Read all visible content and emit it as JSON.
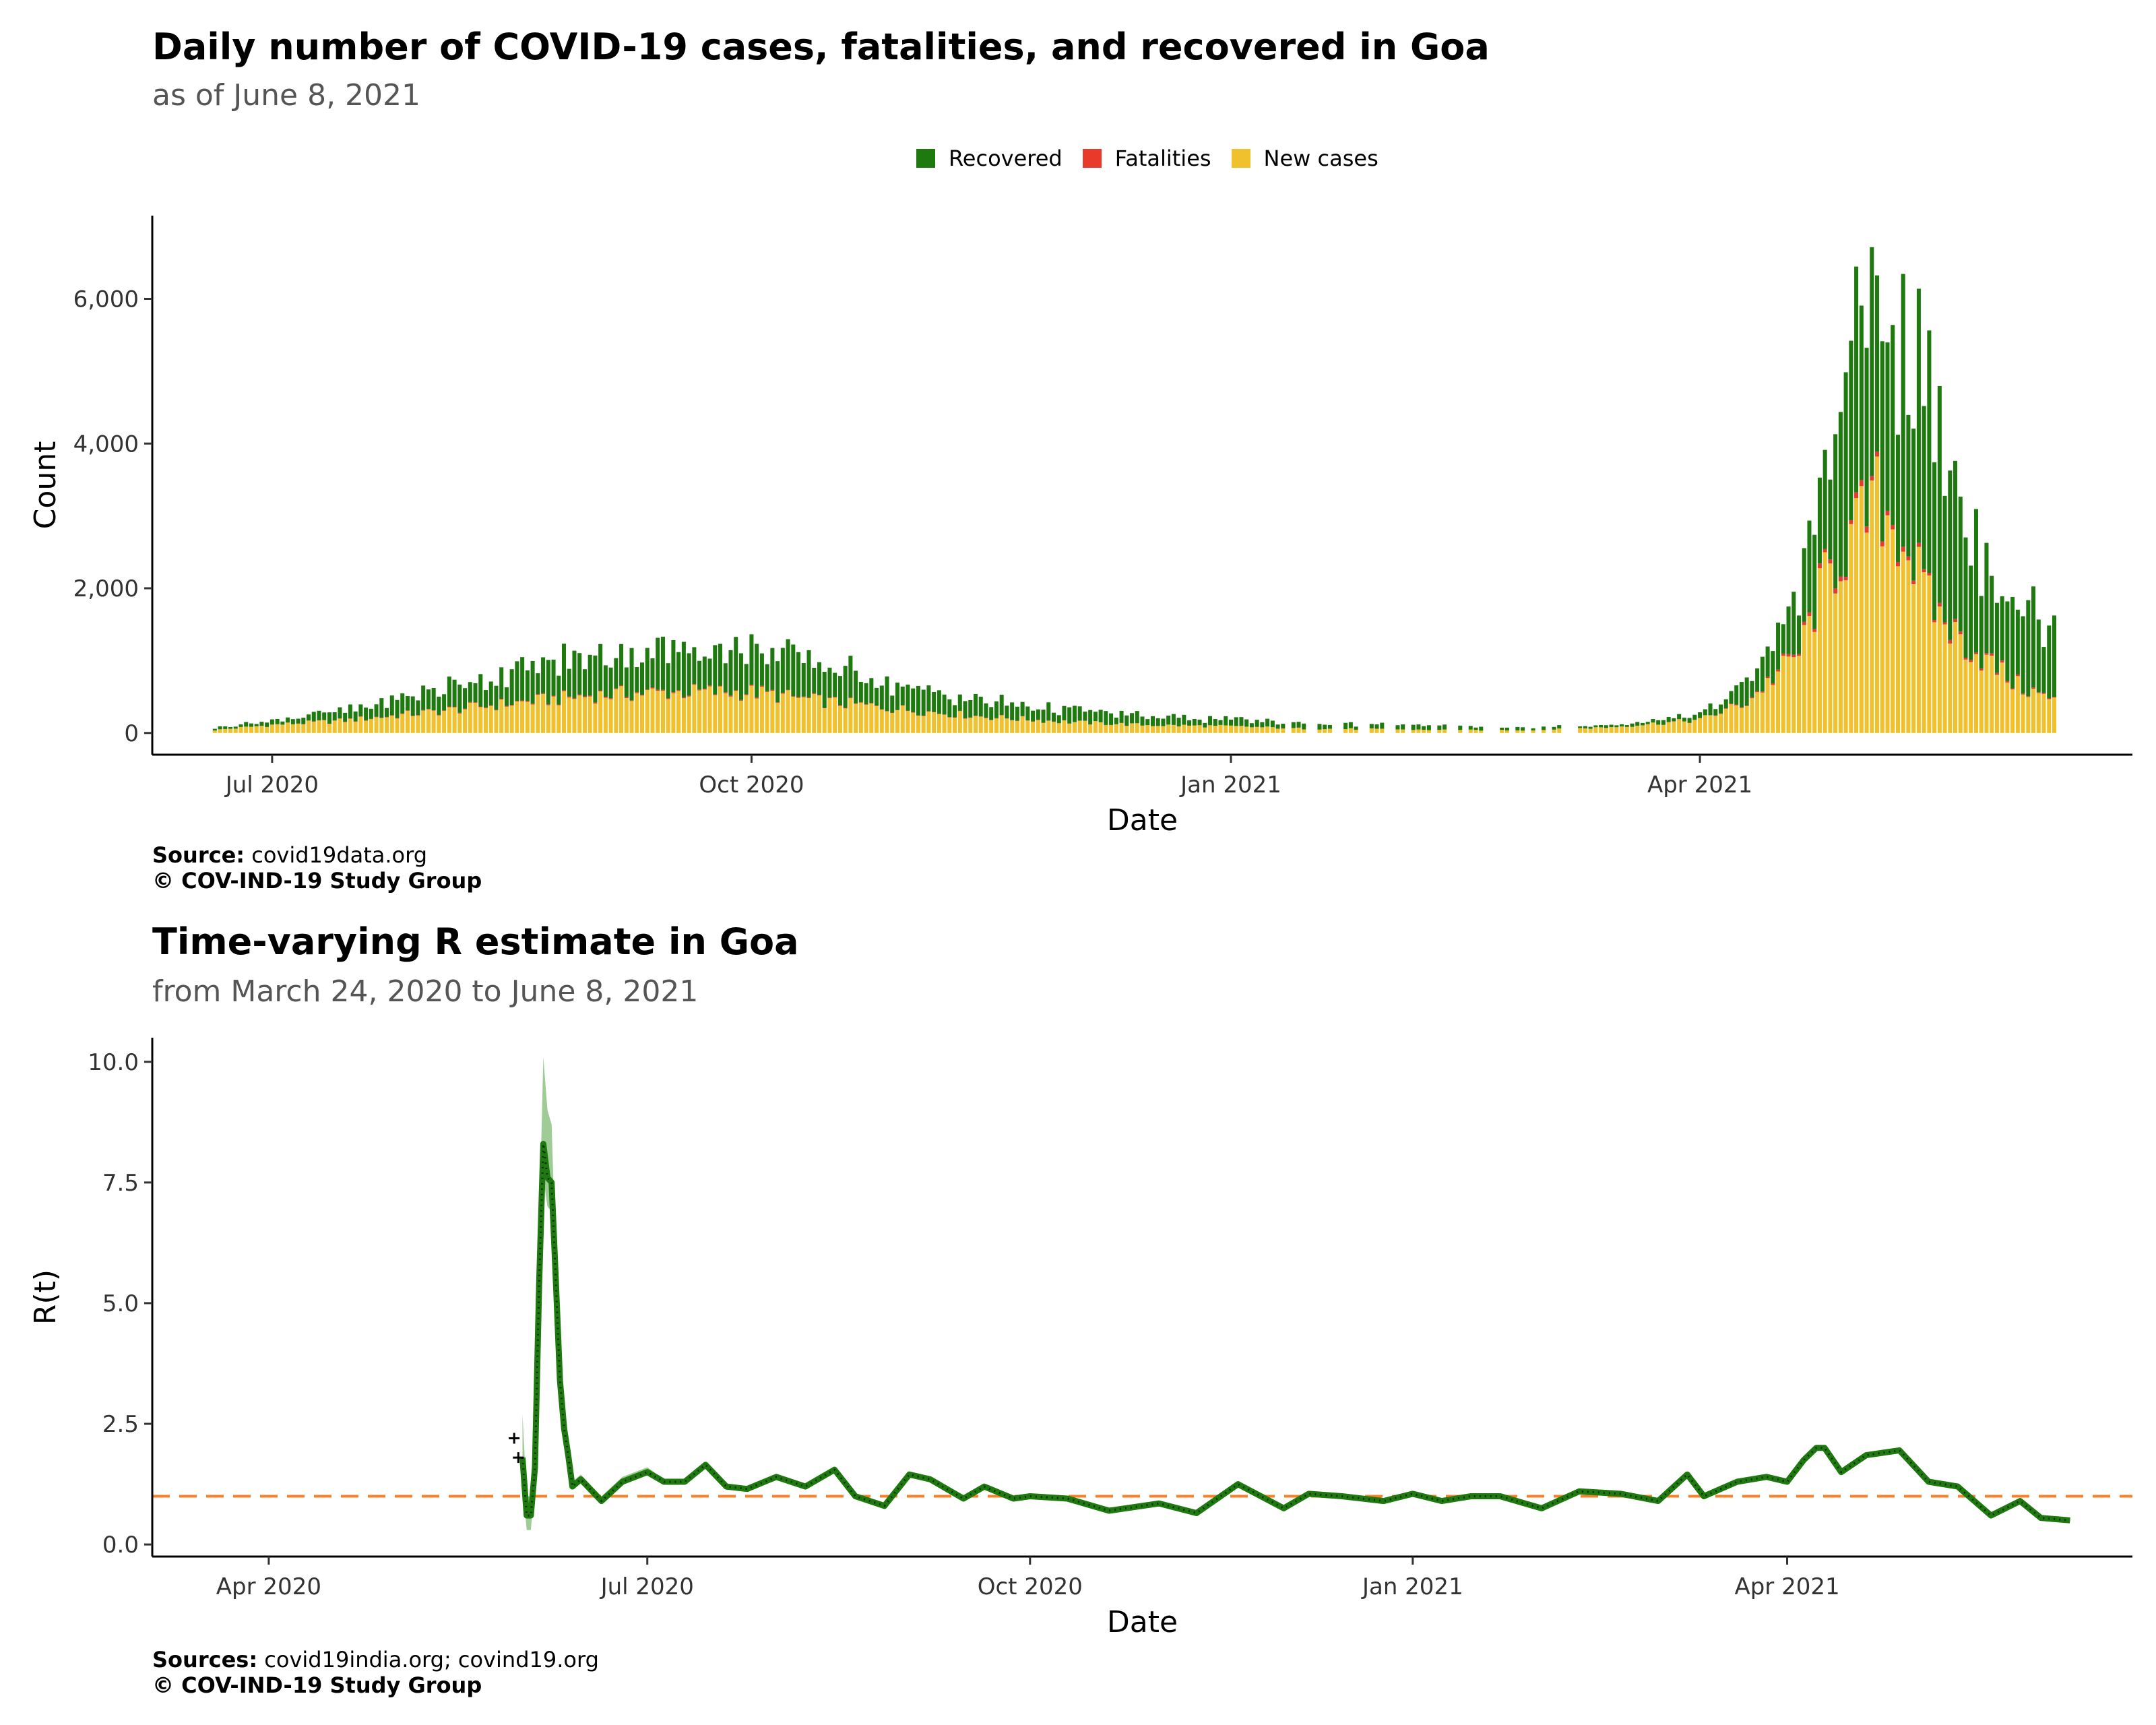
{
  "chart_data": [
    {
      "type": "bar",
      "stacked": true,
      "title": "Daily number of COVID-19 cases, fatalities, and recovered in Goa",
      "subtitle": "as of June  8, 2021",
      "xlabel": "Date",
      "ylabel": "Count",
      "xlim": [
        "2020-06-08",
        "2021-06-23"
      ],
      "ylim": [
        -300,
        7150
      ],
      "x_ticks": [
        "2020-07-01",
        "2020-10-01",
        "2021-01-01",
        "2021-04-01"
      ],
      "x_tick_labels": [
        "Jul 2020",
        "Oct 2020",
        "Jan 2021",
        "Apr 2021"
      ],
      "y_ticks": [
        0,
        2000,
        4000,
        6000
      ],
      "y_tick_labels": [
        "0",
        "2,000",
        "4,000",
        "6,000"
      ],
      "grid": false,
      "legend_position": "top",
      "series": [
        {
          "name": "Recovered",
          "color": "#1e7a0e"
        },
        {
          "name": "Fatalities",
          "color": "#e8392b"
        },
        {
          "name": "New cases",
          "color": "#f0c02d"
        }
      ],
      "envelope": {
        "note_series": [
          "New cases",
          "Fatalities",
          "Recovered"
        ],
        "dates": [
          "2020-06-20",
          "2020-07-01",
          "2020-07-15",
          "2020-08-01",
          "2020-08-15",
          "2020-09-01",
          "2020-09-15",
          "2020-10-01",
          "2020-10-15",
          "2020-11-01",
          "2020-11-15",
          "2020-12-01",
          "2020-12-15",
          "2021-01-01",
          "2021-01-15",
          "2021-02-01",
          "2021-02-15",
          "2021-03-01",
          "2021-03-15",
          "2021-04-01",
          "2021-04-10",
          "2021-04-20",
          "2021-04-25",
          "2021-05-01",
          "2021-05-05",
          "2021-05-10",
          "2021-05-15",
          "2021-05-20",
          "2021-05-25",
          "2021-06-01",
          "2021-06-08"
        ],
        "new_cases": [
          40,
          110,
          170,
          290,
          400,
          520,
          560,
          560,
          430,
          310,
          220,
          150,
          110,
          90,
          60,
          50,
          40,
          40,
          80,
          180,
          420,
          1100,
          2100,
          2750,
          3200,
          2700,
          1800,
          1350,
          1050,
          650,
          440
        ],
        "fatalities": [
          0,
          2,
          4,
          7,
          9,
          11,
          12,
          11,
          8,
          5,
          4,
          2,
          1,
          1,
          1,
          0,
          0,
          0,
          1,
          3,
          10,
          30,
          55,
          65,
          70,
          60,
          45,
          35,
          28,
          18,
          12
        ],
        "recovered": [
          30,
          60,
          130,
          290,
          420,
          540,
          580,
          590,
          470,
          320,
          220,
          170,
          120,
          90,
          70,
          60,
          50,
          40,
          30,
          70,
          280,
          700,
          1500,
          2350,
          2900,
          2700,
          2600,
          2100,
          1550,
          1150,
          950
        ]
      }
    },
    {
      "type": "line",
      "title": "Time-varying R estimate in Goa",
      "subtitle": "from March 24, 2020 to June  8, 2021",
      "xlabel": "Date",
      "ylabel": "R(t)",
      "xlim": [
        "2020-03-04",
        "2021-06-23"
      ],
      "ylim": [
        -0.25,
        10.5
      ],
      "x_ticks": [
        "2020-04-01",
        "2020-07-01",
        "2020-10-01",
        "2021-01-01",
        "2021-04-01"
      ],
      "x_tick_labels": [
        "Apr 2020",
        "Jul 2020",
        "Oct 2020",
        "Jan 2021",
        "Apr 2021"
      ],
      "y_ticks": [
        0.0,
        2.5,
        5.0,
        7.5,
        10.0
      ],
      "y_tick_labels": [
        "0.0",
        "2.5",
        "5.0",
        "7.5",
        "10.0"
      ],
      "reference_line": 1,
      "reference_color": "#f5822a",
      "line_color": "#1e7a0e",
      "ribbon_color": "#7fba73",
      "grid": false,
      "x": [
        "2020-06-01",
        "2020-06-02",
        "2020-06-03",
        "2020-06-04",
        "2020-06-05",
        "2020-06-06",
        "2020-06-07",
        "2020-06-08",
        "2020-06-09",
        "2020-06-10",
        "2020-06-11",
        "2020-06-12",
        "2020-06-13",
        "2020-06-15",
        "2020-06-20",
        "2020-06-25",
        "2020-07-01",
        "2020-07-05",
        "2020-07-10",
        "2020-07-15",
        "2020-07-20",
        "2020-07-25",
        "2020-08-01",
        "2020-08-08",
        "2020-08-15",
        "2020-08-20",
        "2020-08-27",
        "2020-09-02",
        "2020-09-07",
        "2020-09-15",
        "2020-09-20",
        "2020-09-27",
        "2020-10-01",
        "2020-10-10",
        "2020-10-20",
        "2020-11-01",
        "2020-11-10",
        "2020-11-20",
        "2020-12-01",
        "2020-12-07",
        "2020-12-15",
        "2020-12-25",
        "2021-01-01",
        "2021-01-08",
        "2021-01-15",
        "2021-01-22",
        "2021-02-01",
        "2021-02-10",
        "2021-02-20",
        "2021-03-01",
        "2021-03-08",
        "2021-03-12",
        "2021-03-20",
        "2021-03-27",
        "2021-04-01",
        "2021-04-05",
        "2021-04-08",
        "2021-04-10",
        "2021-04-14",
        "2021-04-20",
        "2021-04-28",
        "2021-05-05",
        "2021-05-12",
        "2021-05-20",
        "2021-05-27",
        "2021-06-01",
        "2021-06-08"
      ],
      "r": [
        1.8,
        0.6,
        0.6,
        1.6,
        5.4,
        8.3,
        7.6,
        7.5,
        5.5,
        3.4,
        2.4,
        1.85,
        1.2,
        1.35,
        0.9,
        1.3,
        1.5,
        1.3,
        1.3,
        1.65,
        1.2,
        1.15,
        1.4,
        1.2,
        1.55,
        1.0,
        0.8,
        1.45,
        1.35,
        0.95,
        1.2,
        0.95,
        1.0,
        0.95,
        0.7,
        0.85,
        0.65,
        1.25,
        0.75,
        1.05,
        1.0,
        0.9,
        1.05,
        0.9,
        1.0,
        1.0,
        0.75,
        1.1,
        1.05,
        0.9,
        1.45,
        1.0,
        1.3,
        1.4,
        1.3,
        1.75,
        2.0,
        2.0,
        1.5,
        1.85,
        1.95,
        1.3,
        1.2,
        0.6,
        0.9,
        0.55,
        0.5
      ],
      "lower": [
        1.3,
        0.3,
        0.3,
        1.3,
        4.9,
        7.6,
        7.0,
        6.9,
        5.1,
        3.2,
        2.3,
        1.8,
        1.15,
        1.3,
        0.88,
        1.25,
        1.45,
        1.27,
        1.28,
        1.62,
        1.18,
        1.13,
        1.38,
        1.18,
        1.53,
        0.98,
        0.78,
        1.43,
        1.33,
        0.93,
        1.18,
        0.93,
        0.98,
        0.93,
        0.68,
        0.83,
        0.63,
        1.23,
        0.73,
        1.03,
        0.98,
        0.88,
        1.03,
        0.88,
        0.98,
        0.98,
        0.73,
        1.08,
        1.03,
        0.88,
        1.43,
        0.98,
        1.28,
        1.38,
        1.28,
        1.73,
        1.98,
        1.98,
        1.48,
        1.83,
        1.93,
        1.28,
        1.18,
        0.58,
        0.88,
        0.53,
        0.48
      ],
      "upper": [
        2.7,
        1.0,
        1.0,
        2.0,
        6.5,
        10.1,
        9.0,
        8.7,
        6.0,
        3.7,
        2.6,
        1.95,
        1.3,
        1.45,
        1.0,
        1.4,
        1.6,
        1.35,
        1.35,
        1.7,
        1.25,
        1.2,
        1.45,
        1.25,
        1.6,
        1.05,
        0.85,
        1.5,
        1.4,
        1.0,
        1.25,
        1.0,
        1.05,
        1.0,
        0.75,
        0.9,
        0.7,
        1.3,
        0.8,
        1.1,
        1.05,
        0.95,
        1.1,
        0.95,
        1.05,
        1.05,
        0.8,
        1.15,
        1.1,
        0.95,
        1.5,
        1.05,
        1.35,
        1.45,
        1.35,
        1.8,
        2.05,
        2.05,
        1.55,
        1.9,
        2.0,
        1.35,
        1.25,
        0.65,
        0.95,
        0.6,
        0.55
      ],
      "points": [
        [
          "2020-05-30",
          2.2
        ],
        [
          "2020-05-31",
          1.8
        ]
      ]
    }
  ],
  "captions": {
    "top": {
      "source_label": "Source:",
      "source_text": " covid19data.org",
      "copyright": "© COV-IND-19 Study Group"
    },
    "bottom": {
      "source_label": "Sources:",
      "source_text": " covid19india.org; covind19.org",
      "copyright": "© COV-IND-19 Study Group"
    }
  }
}
